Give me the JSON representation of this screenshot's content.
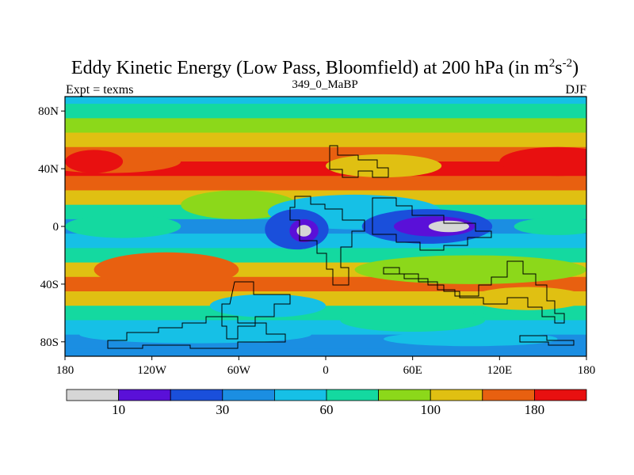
{
  "chart_data": {
    "type": "heatmap",
    "title": {
      "main": "Eddy Kinetic Energy (Low Pass, Bloomfield) at 200 hPa (in m",
      "sup1": "2",
      "mid": "s",
      "sup2": "-2",
      "end": ")"
    },
    "subtitle": "349_0_MaBP",
    "left_label": "Expt = texms",
    "right_label": "DJF",
    "x_axis": {
      "range": [
        -180,
        180
      ],
      "ticks": [
        -180,
        -120,
        -60,
        0,
        60,
        120,
        180
      ],
      "tick_labels": [
        "180",
        "120W",
        "60W",
        "0",
        "60E",
        "120E",
        "180"
      ]
    },
    "y_axis": {
      "range": [
        -90,
        90
      ],
      "ticks": [
        80,
        40,
        0,
        -40,
        -80
      ],
      "tick_labels": [
        "80N",
        "40N",
        "0",
        "40S",
        "80S"
      ]
    },
    "colorbar": {
      "colors": [
        "#d6d6d6",
        "#5a10d8",
        "#1a4fdb",
        "#1b8ee2",
        "#16c0e6",
        "#14d9a0",
        "#8cd81a",
        "#e0c012",
        "#e86010",
        "#e81010"
      ],
      "labels": [
        "10",
        "30",
        "60",
        "100",
        "180"
      ],
      "label_positions": [
        1,
        3,
        5,
        7,
        9
      ]
    },
    "field_bands": [
      {
        "lat": 90,
        "level": 4
      },
      {
        "lat": 80,
        "level": 5
      },
      {
        "lat": 70,
        "level": 6
      },
      {
        "lat": 60,
        "level": 7
      },
      {
        "lat": 50,
        "level": 8
      },
      {
        "lat": 40,
        "level": 9
      },
      {
        "lat": 30,
        "level": 8
      },
      {
        "lat": 20,
        "level": 7
      },
      {
        "lat": 10,
        "level": 5
      },
      {
        "lat": 0,
        "level": 3
      },
      {
        "lat": -10,
        "level": 4
      },
      {
        "lat": -20,
        "level": 5
      },
      {
        "lat": -30,
        "level": 7
      },
      {
        "lat": -40,
        "level": 8
      },
      {
        "lat": -50,
        "level": 7
      },
      {
        "lat": -60,
        "level": 5
      },
      {
        "lat": -70,
        "level": 4
      },
      {
        "lat": -80,
        "level": 3
      },
      {
        "lat": -90,
        "level": 3
      }
    ]
  }
}
